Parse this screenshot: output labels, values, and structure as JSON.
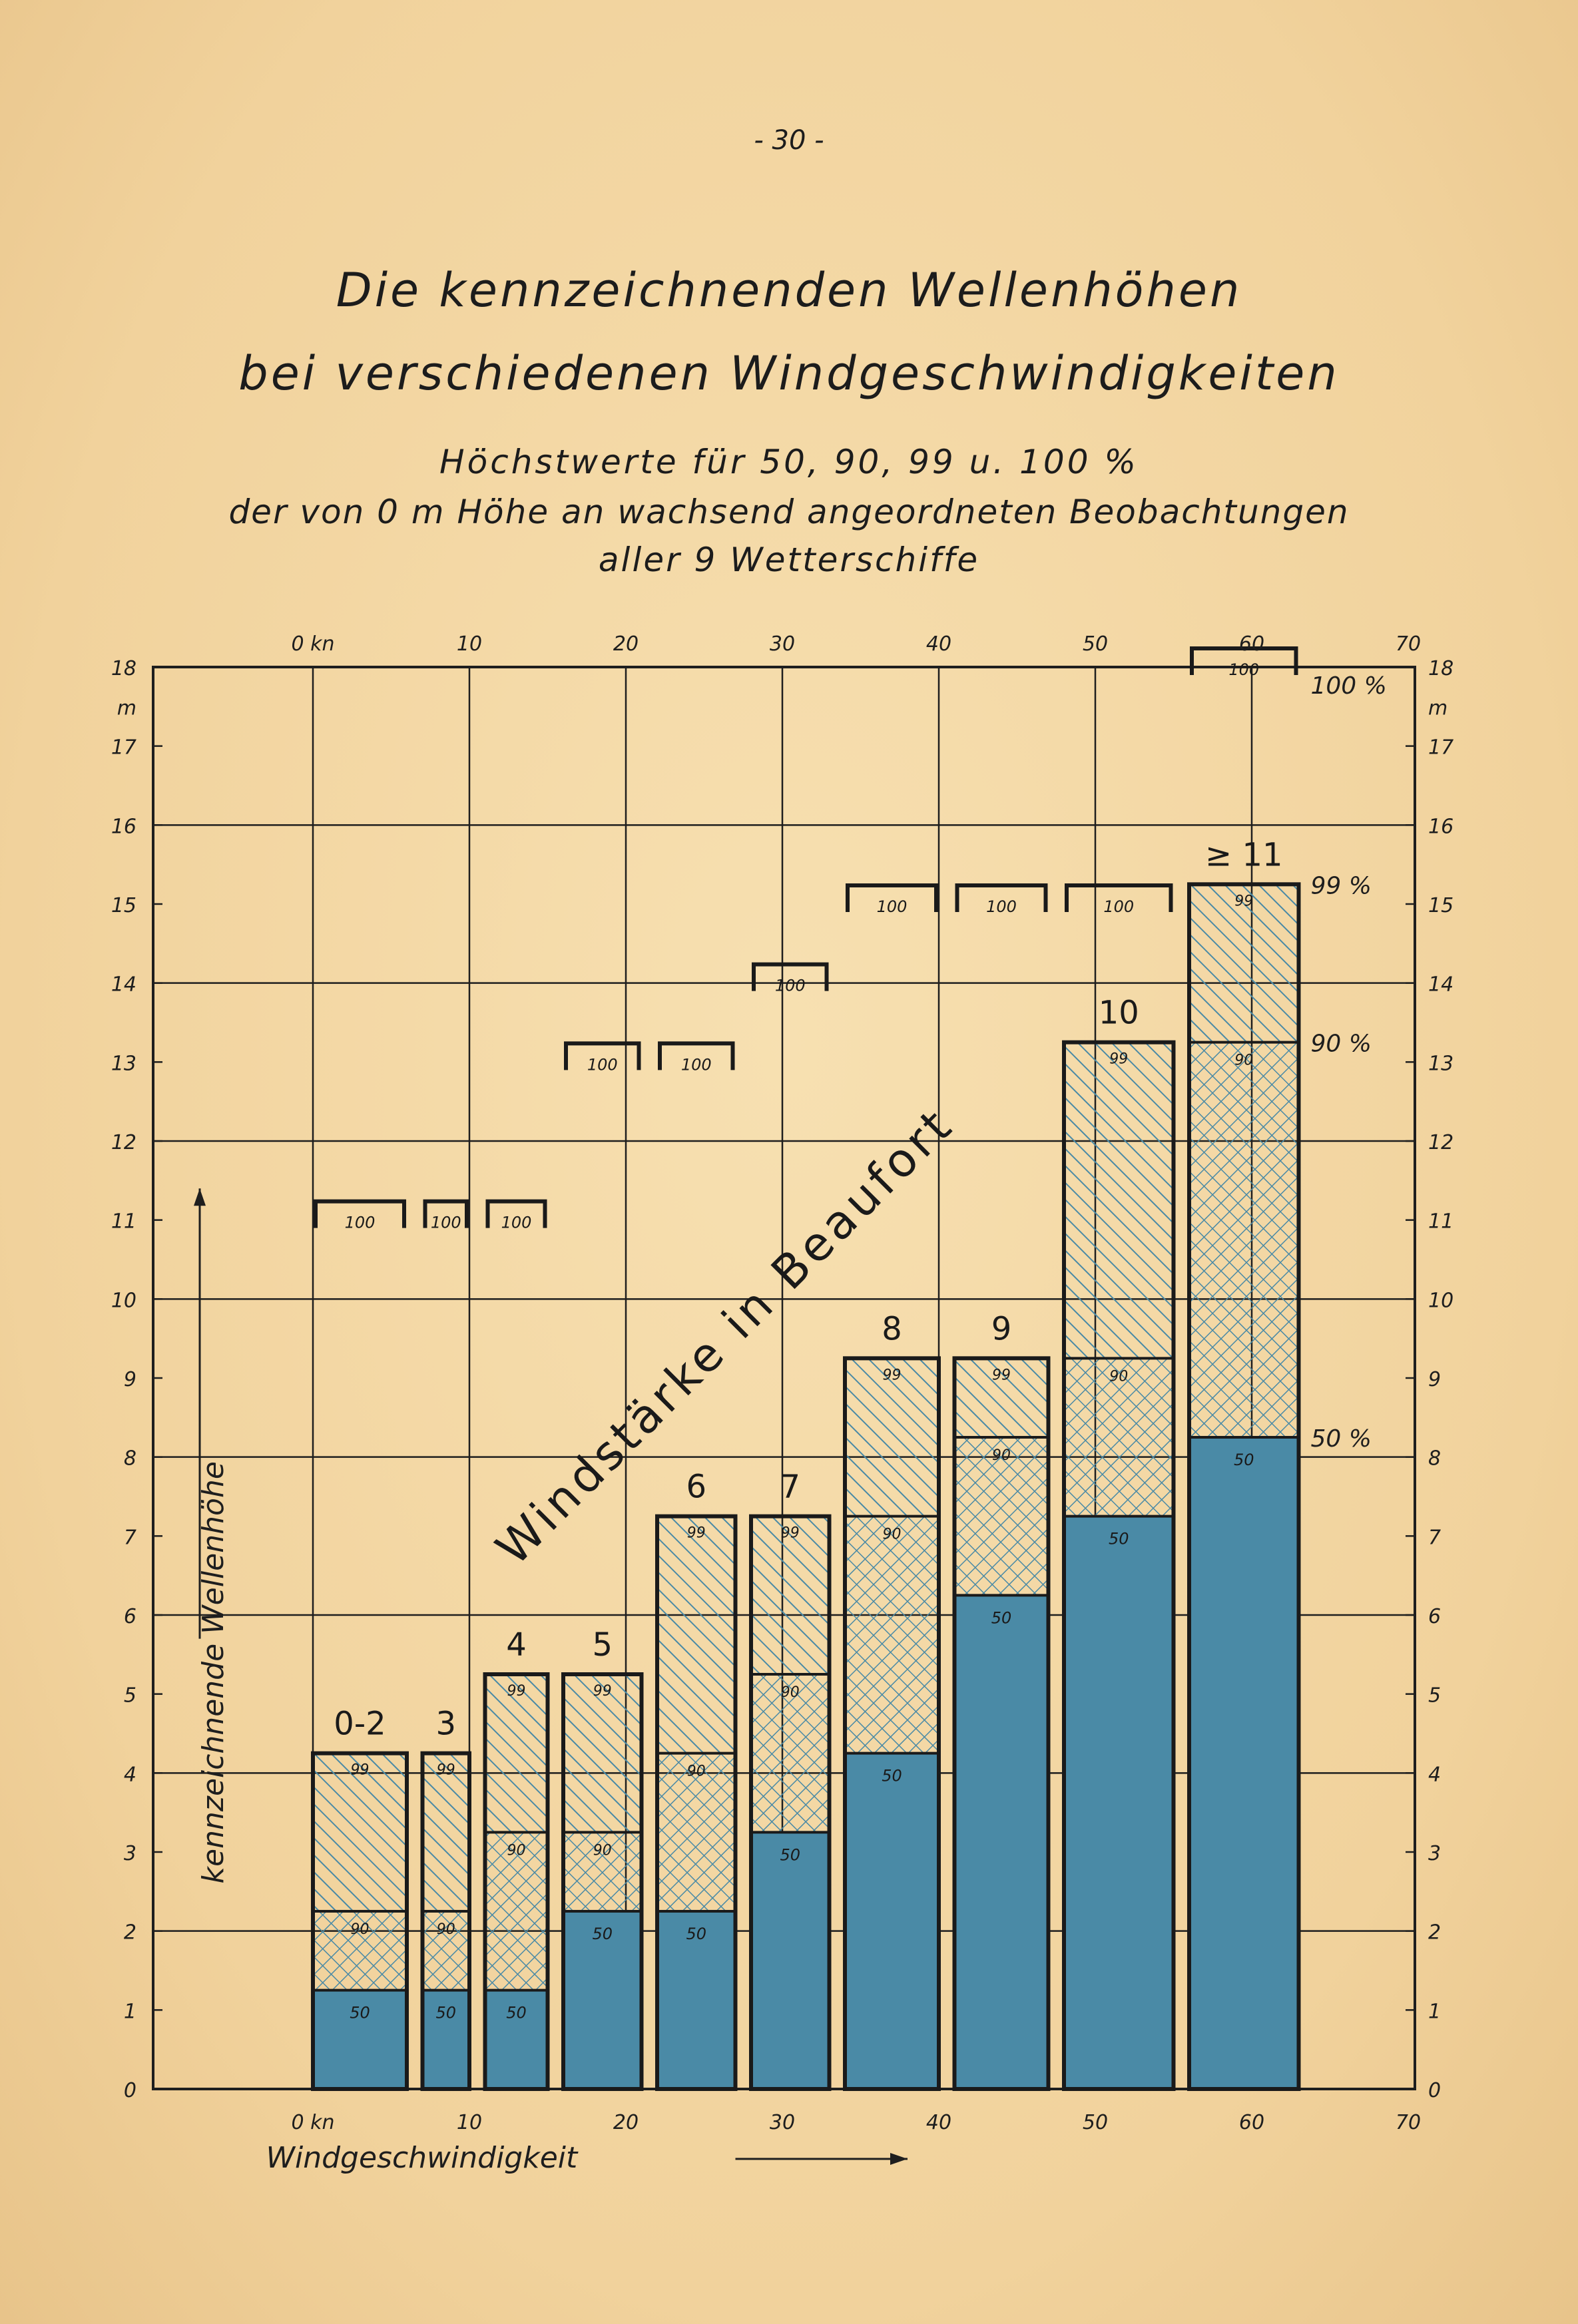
{
  "page_number": "- 30 -",
  "title_line1": "Die kennzeichnenden Wellenhöhen",
  "title_line2": "bei verschiedenen Windgeschwindigkeiten",
  "subtitle_line1": "Höchstwerte für 50, 90, 99 u. 100 %",
  "subtitle_line2": "der von 0 m Höhe an wachsend angeordneten Beobachtungen",
  "subtitle_line3": "aller 9 Wetterschiffe",
  "colors": {
    "solid_50": "#4a8aa6",
    "hatch": "#4a8aa6",
    "grid": "#1e1e1e",
    "paper": "#f4d9a6"
  },
  "chart_data": {
    "type": "bar",
    "stacked": true,
    "xlabel": "Windgeschwindigkeit",
    "ylabel": "kennzeichnende Wellenhöhe",
    "y_unit": "m",
    "x_unit": "kn",
    "xlim": [
      0,
      70
    ],
    "ylim": [
      0,
      18
    ],
    "x_ticks": [
      "0 kn",
      "10",
      "20",
      "30",
      "40",
      "50",
      "60",
      "70"
    ],
    "y_ticks": [
      "0",
      "1",
      "2",
      "3",
      "4",
      "5",
      "6",
      "7",
      "8",
      "9",
      "10",
      "11",
      "12",
      "13",
      "14",
      "15",
      "16",
      "17",
      "18"
    ],
    "diagonal_label": "Windstärke in Beaufort",
    "percent_labels": [
      "100 %",
      "99 %",
      "90 %",
      "50 %"
    ],
    "segment_labels": {
      "p50": "50",
      "p90": "90",
      "p99": "99",
      "p100": "100"
    },
    "bars": [
      {
        "label": "0-2",
        "x_start": 0,
        "x_end": 6,
        "p50": 1.25,
        "p90": 2.25,
        "p99": 4.25,
        "p100": 11.0
      },
      {
        "label": "3",
        "x_start": 7,
        "x_end": 10,
        "p50": 1.25,
        "p90": 2.25,
        "p99": 4.25,
        "p100": 11.0
      },
      {
        "label": "4",
        "x_start": 11,
        "x_end": 15,
        "p50": 1.25,
        "p90": 3.25,
        "p99": 5.25,
        "p100": 11.0
      },
      {
        "label": "5",
        "x_start": 16,
        "x_end": 21,
        "p50": 2.25,
        "p90": 3.25,
        "p99": 5.25,
        "p100": 13.0
      },
      {
        "label": "6",
        "x_start": 22,
        "x_end": 27,
        "p50": 2.25,
        "p90": 4.25,
        "p99": 7.25,
        "p100": 13.0
      },
      {
        "label": "7",
        "x_start": 28,
        "x_end": 33,
        "p50": 3.25,
        "p90": 5.25,
        "p99": 7.25,
        "p100": 14.0
      },
      {
        "label": "8",
        "x_start": 34,
        "x_end": 40,
        "p50": 4.25,
        "p90": 7.25,
        "p99": 9.25,
        "p100": 15.0
      },
      {
        "label": "9",
        "x_start": 41,
        "x_end": 47,
        "p50": 6.25,
        "p90": 8.25,
        "p99": 9.25,
        "p100": 15.0
      },
      {
        "label": "10",
        "x_start": 48,
        "x_end": 55,
        "p50": 7.25,
        "p90": 9.25,
        "p99": 13.25,
        "p100": 15.0
      },
      {
        "label": "≥ 11",
        "x_start": 56,
        "x_end": 63,
        "p50": 8.25,
        "p90": 13.25,
        "p99": 15.25,
        "p100": 18.0
      }
    ]
  }
}
